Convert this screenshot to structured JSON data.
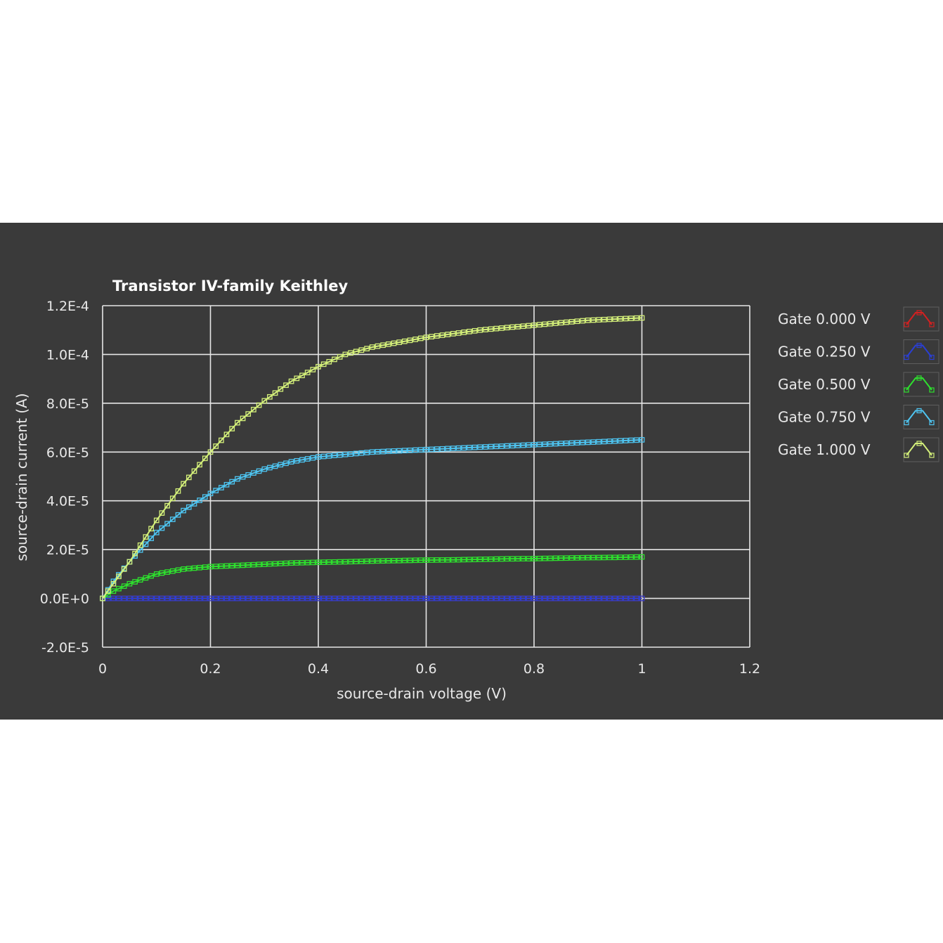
{
  "chart_data": {
    "type": "line",
    "title": "Transistor IV-family Keithley",
    "xlabel": "source-drain voltage (V)",
    "ylabel": "source-drain current (A)",
    "xlim": [
      0,
      1.2
    ],
    "ylim": [
      -2e-05,
      0.00012
    ],
    "x_ticks": [
      0,
      0.2,
      0.4,
      0.6,
      0.8,
      1,
      1.2
    ],
    "x_tick_labels": [
      "0",
      "0.2",
      "0.4",
      "0.6",
      "0.8",
      "1",
      "1.2"
    ],
    "y_ticks": [
      -2e-05,
      0,
      2e-05,
      4e-05,
      6e-05,
      8e-05,
      0.0001,
      0.00012
    ],
    "y_tick_labels": [
      "-2.0E-5",
      "0.0E+0",
      "2.0E-5",
      "4.0E-5",
      "6.0E-5",
      "8.0E-5",
      "1.0E-4",
      "1.2E-4"
    ],
    "grid": true,
    "legend_position": "right",
    "marker": "square",
    "x": [
      0,
      0.02,
      0.05,
      0.1,
      0.15,
      0.2,
      0.25,
      0.3,
      0.35,
      0.4,
      0.45,
      0.5,
      0.55,
      0.6,
      0.65,
      0.7,
      0.75,
      0.8,
      0.85,
      0.9,
      0.95,
      1.0
    ],
    "series": [
      {
        "name": "Gate 0.000 V",
        "color": "#d42020",
        "values": [
          0,
          0,
          0,
          0,
          0,
          0,
          0,
          0,
          0,
          0,
          0,
          0,
          0,
          0,
          0,
          0,
          0,
          -5e-08,
          -5e-08,
          -5e-08,
          -5e-08,
          -5e-08
        ]
      },
      {
        "name": "Gate 0.250 V",
        "color": "#2a3fd4",
        "values": [
          0,
          0,
          0,
          0,
          0,
          0,
          0,
          0,
          0,
          0,
          0,
          0,
          0,
          0,
          0,
          0,
          0,
          0,
          0,
          0,
          0,
          0
        ]
      },
      {
        "name": "Gate 0.500 V",
        "color": "#2ee02e",
        "values": [
          0,
          3e-06,
          6e-06,
          1e-05,
          1.2e-05,
          1.3e-05,
          1.35e-05,
          1.4e-05,
          1.45e-05,
          1.48e-05,
          1.5e-05,
          1.53e-05,
          1.55e-05,
          1.57e-05,
          1.58e-05,
          1.6e-05,
          1.62e-05,
          1.63e-05,
          1.65e-05,
          1.67e-05,
          1.68e-05,
          1.7e-05
        ]
      },
      {
        "name": "Gate 0.750 V",
        "color": "#4ec4f0",
        "values": [
          0,
          7e-06,
          1.5e-05,
          2.7e-05,
          3.6e-05,
          4.3e-05,
          4.9e-05,
          5.3e-05,
          5.6e-05,
          5.8e-05,
          5.9e-05,
          6e-05,
          6.05e-05,
          6.1e-05,
          6.15e-05,
          6.2e-05,
          6.25e-05,
          6.3e-05,
          6.35e-05,
          6.4e-05,
          6.45e-05,
          6.5e-05
        ]
      },
      {
        "name": "Gate 1.000 V",
        "color": "#d4f07a",
        "values": [
          0,
          6e-06,
          1.5e-05,
          3.2e-05,
          4.7e-05,
          6e-05,
          7.2e-05,
          8.1e-05,
          8.9e-05,
          9.5e-05,
          0.0001,
          0.000103,
          0.000105,
          0.000107,
          0.0001085,
          0.00011,
          0.000111,
          0.000112,
          0.000113,
          0.000114,
          0.0001145,
          0.000115
        ]
      }
    ]
  }
}
